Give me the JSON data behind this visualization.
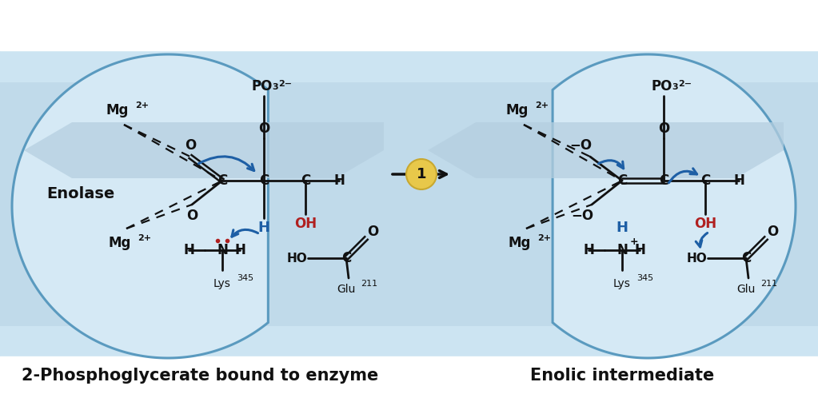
{
  "fig_bg": "#ffffff",
  "title_left": "2-Phosphoglycerate bound to enzyme",
  "title_right": "Enolic intermediate",
  "label_enolase": "Enolase",
  "panel_bg_light": "#cce0ef",
  "panel_bg_mid": "#b8d4e8",
  "blob_edge": "#5a9abf",
  "text_black": "#1a1a1a",
  "text_blue": "#1e5fa5",
  "text_red": "#b02020",
  "shade_color": "#adc8dc",
  "arrow_bg": "#e8c84a",
  "arrow_bg_edge": "#c8a830"
}
